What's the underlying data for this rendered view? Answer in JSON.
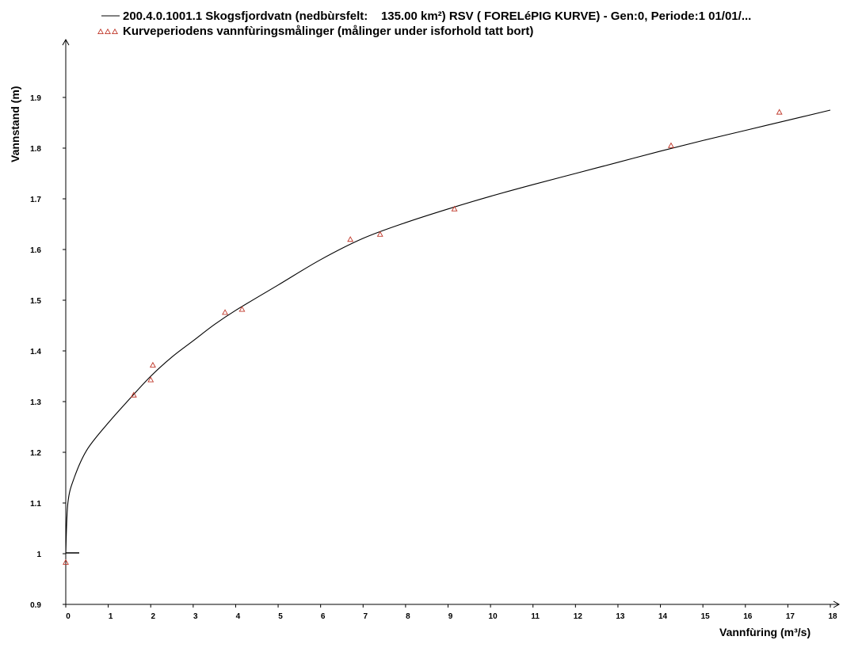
{
  "chart_data": {
    "type": "line",
    "title": "",
    "xlabel": "Vannfùring (m³/s)",
    "ylabel": "Vannstand (m)",
    "xlim": [
      0,
      18
    ],
    "ylim": [
      0.9,
      2.0
    ],
    "x_ticks": [
      "0",
      "1",
      "2",
      "3",
      "4",
      "5",
      "6",
      "7",
      "8",
      "9",
      "10",
      "11",
      "12",
      "13",
      "14",
      "15",
      "16",
      "17",
      "18"
    ],
    "y_ticks": [
      "0.9",
      "1",
      "1.1",
      "1.2",
      "1.3",
      "1.4",
      "1.5",
      "1.6",
      "1.7",
      "1.8",
      "1.9"
    ],
    "grid": false,
    "legend_position": "top-left",
    "series": [
      {
        "name": "200.4.0.1001.1 Skogsfjordvatn (nedbùrsfelt:    135.00 km²) RSV ( FORELéPIG KURVE) - Gen:0, Periode:1 01/01/...",
        "type": "line",
        "color": "#000000",
        "x": [
          0,
          0.05,
          0.2,
          0.5,
          1,
          1.5,
          2,
          2.5,
          3,
          3.5,
          4,
          5,
          6,
          7,
          8,
          9,
          10,
          11,
          12,
          13,
          14,
          15,
          16,
          17,
          18
        ],
        "y": [
          1.0,
          1.1,
          1.15,
          1.205,
          1.258,
          1.305,
          1.35,
          1.388,
          1.42,
          1.452,
          1.48,
          1.53,
          1.58,
          1.622,
          1.653,
          1.68,
          1.705,
          1.728,
          1.75,
          1.772,
          1.794,
          1.815,
          1.835,
          1.855,
          1.875
        ]
      },
      {
        "name": "Kurveperiodens vannfùringsmålinger (målinger under isforhold tatt bort)",
        "type": "scatter",
        "color": "#c0392b",
        "marker": "triangle",
        "x": [
          0.0,
          1.6,
          2.0,
          2.05,
          3.75,
          4.15,
          6.7,
          7.4,
          9.15,
          14.25,
          16.8
        ],
        "y": [
          0.983,
          1.313,
          1.343,
          1.372,
          1.476,
          1.482,
          1.62,
          1.63,
          1.68,
          1.805,
          1.871
        ]
      }
    ]
  }
}
